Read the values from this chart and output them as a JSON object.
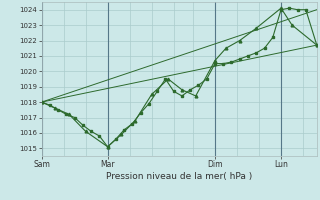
{
  "title": "",
  "xlabel": "Pression niveau de la mer( hPa )",
  "ylabel": "",
  "bg_color": "#cce8e8",
  "grid_color": "#aacccc",
  "line_color": "#2d6a2d",
  "xlim": [
    0,
    100
  ],
  "ylim": [
    1014.5,
    1024.5
  ],
  "yticks": [
    1015,
    1016,
    1017,
    1018,
    1019,
    1020,
    1021,
    1022,
    1023,
    1024
  ],
  "xtick_labels": [
    "Sam",
    "Mar",
    "Dim",
    "Lun"
  ],
  "xtick_positions": [
    0,
    24,
    63,
    87
  ],
  "vlines": [
    0,
    24,
    63,
    87
  ],
  "minor_xticks": [
    8,
    16,
    32,
    40,
    48,
    55,
    71,
    79,
    95
  ],
  "series1_x": [
    0,
    3,
    6,
    9,
    12,
    15,
    18,
    21,
    24,
    27,
    30,
    33,
    36,
    39,
    42,
    45,
    48,
    51,
    54,
    57,
    60,
    63,
    66,
    69,
    72,
    75,
    78,
    81,
    84,
    87,
    90,
    93,
    96,
    100
  ],
  "series1_y": [
    1018.0,
    1017.8,
    1017.5,
    1017.2,
    1017.0,
    1016.5,
    1016.1,
    1015.8,
    1015.1,
    1015.6,
    1016.2,
    1016.6,
    1017.3,
    1017.9,
    1018.7,
    1019.5,
    1018.7,
    1018.4,
    1018.8,
    1019.1,
    1019.5,
    1020.5,
    1020.5,
    1020.6,
    1020.8,
    1021.0,
    1021.2,
    1021.5,
    1022.2,
    1024.0,
    1024.1,
    1024.0,
    1024.0,
    1021.7
  ],
  "series2_x": [
    0,
    5,
    10,
    16,
    24,
    29,
    34,
    40,
    46,
    51,
    56,
    63,
    67,
    72,
    78,
    87,
    91,
    100
  ],
  "series2_y": [
    1018.0,
    1017.6,
    1017.2,
    1016.1,
    1015.1,
    1015.9,
    1016.8,
    1018.5,
    1019.5,
    1018.8,
    1018.4,
    1020.7,
    1021.5,
    1022.0,
    1022.8,
    1024.1,
    1023.0,
    1021.7
  ],
  "series3_x": [
    0,
    100
  ],
  "series3_y": [
    1018.0,
    1021.7
  ],
  "series4_x": [
    0,
    100
  ],
  "series4_y": [
    1018.0,
    1024.0
  ]
}
